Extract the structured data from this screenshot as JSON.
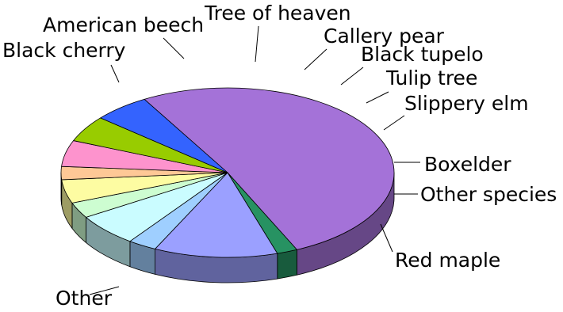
{
  "chart_data": {
    "type": "pie",
    "style": "3d",
    "title": "",
    "unit": "percent",
    "slices": [
      {
        "label": "Other",
        "value": 51.5,
        "color": "#a472d8"
      },
      {
        "label": "Black cherry",
        "value": 2.0,
        "color": "#279262"
      },
      {
        "label": "American beech",
        "value": 12.0,
        "color": "#9ba0ff"
      },
      {
        "label": "Tree of heaven",
        "value": 2.8,
        "color": "#9fcfff"
      },
      {
        "label": "Callery pear",
        "value": 6.2,
        "color": "#cafcff"
      },
      {
        "label": "Black tupelo",
        "value": 3.0,
        "color": "#cdfdd1"
      },
      {
        "label": "Tulip tree",
        "value": 4.5,
        "color": "#fdfca2"
      },
      {
        "label": "Slippery elm",
        "value": 2.5,
        "color": "#fec896"
      },
      {
        "label": "Boxelder",
        "value": 5.0,
        "color": "#fd93cd"
      },
      {
        "label": "Other species",
        "value": 5.0,
        "color": "#98cc00"
      },
      {
        "label": "Red maple",
        "value": 5.5,
        "color": "#3463fe"
      }
    ]
  }
}
